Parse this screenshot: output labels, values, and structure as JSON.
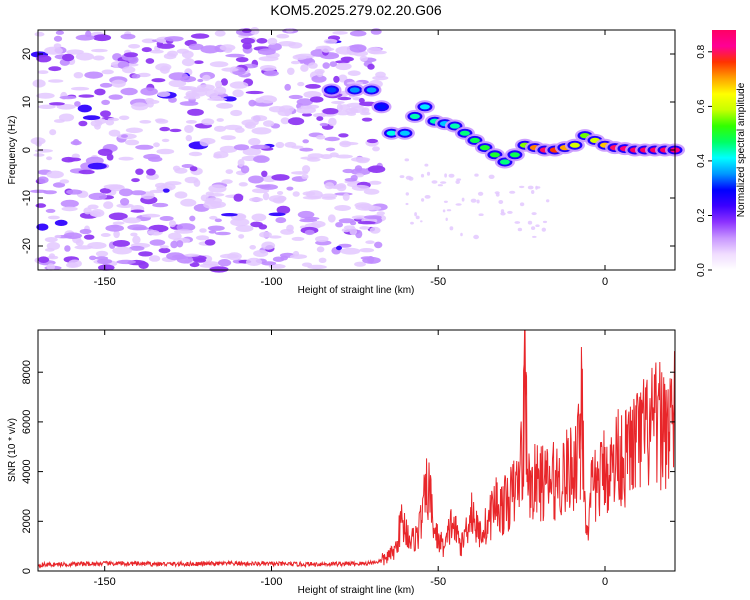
{
  "figure_title": "KOM5.2025.279.02.20.G06",
  "colors": {
    "blob": "#8a2be2",
    "snr_line": "#e8262a",
    "axis": "#000000",
    "colorbar_stops": [
      "#ffffff",
      "#f0dcff",
      "#c896ff",
      "#8c32ff",
      "#3c00ff",
      "#0000ff",
      "#0096ff",
      "#00ffff",
      "#00ff64",
      "#32ff00",
      "#c8ff00",
      "#ffff00",
      "#ffa000",
      "#ff3200",
      "#ff0096",
      "#ff0064"
    ]
  },
  "chart_data": [
    {
      "type": "heatmap",
      "title": "KOM5.2025.279.02.20.G06",
      "xlabel": "Height of straight line (km)",
      "ylabel": "Frequency (Hz)",
      "xlim": [
        -170,
        21
      ],
      "ylim": [
        -25,
        25
      ],
      "x_ticks": [
        -150,
        -100,
        -50,
        0
      ],
      "x_tick_labels": [
        "-150",
        "-100",
        "-50",
        "0"
      ],
      "y_ticks": [
        -20,
        -10,
        0,
        10,
        20
      ],
      "y_tick_labels": [
        "-20",
        "-10",
        "0",
        "10",
        "20"
      ],
      "noise_region_x": [
        -170,
        -67
      ],
      "ridge": {
        "x": [
          -82,
          -75,
          -70,
          -67,
          -64,
          -60,
          -57,
          -54,
          -51,
          -48,
          -45,
          -42,
          -39,
          -36,
          -33,
          -30,
          -27,
          -24,
          -21,
          -18,
          -15,
          -12,
          -9,
          -6,
          -3,
          0,
          3,
          6,
          9,
          12,
          15,
          18,
          21
        ],
        "y": [
          12.5,
          12.5,
          12.5,
          9,
          3.5,
          3.5,
          7,
          9,
          6,
          5.5,
          5,
          3.5,
          2,
          0.5,
          -1,
          -2.5,
          -1,
          1,
          0.5,
          0,
          0,
          0.5,
          1,
          3,
          2,
          1,
          0.5,
          0.3,
          0,
          0,
          0,
          0,
          0
        ],
        "amplitude": [
          0.32,
          0.35,
          0.36,
          0.3,
          0.42,
          0.38,
          0.44,
          0.4,
          0.44,
          0.38,
          0.44,
          0.46,
          0.48,
          0.5,
          0.5,
          0.46,
          0.48,
          0.56,
          0.72,
          0.8,
          0.76,
          0.7,
          0.6,
          0.55,
          0.6,
          0.68,
          0.8,
          0.86,
          0.9,
          0.92,
          0.92,
          0.9,
          0.85
        ]
      },
      "colorbar": {
        "label": "Normalized spectral amplitude",
        "range": [
          0.0,
          0.88
        ],
        "ticks": [
          0.0,
          0.2,
          0.4,
          0.6,
          0.8
        ],
        "tick_labels": [
          "0.0",
          "0.2",
          "0.4",
          "0.6",
          "0.8"
        ]
      }
    },
    {
      "type": "line",
      "xlabel": "Height of straight line (km)",
      "ylabel": "SNR (10 * v/v)",
      "xlim": [
        -170,
        21
      ],
      "ylim": [
        0,
        9700
      ],
      "x_ticks": [
        -150,
        -100,
        -50,
        0
      ],
      "x_tick_labels": [
        "-150",
        "-100",
        "-50",
        "0"
      ],
      "y_ticks": [
        0,
        2000,
        4000,
        6000,
        8000
      ],
      "y_tick_labels": [
        "0",
        "2000",
        "4000",
        "6000",
        "8000"
      ],
      "series": [
        {
          "name": "SNR",
          "x": [
            -170,
            -150,
            -130,
            -110,
            -90,
            -72,
            -67,
            -63,
            -61,
            -58,
            -56,
            -53,
            -51,
            -48,
            -46,
            -43,
            -40,
            -38,
            -35,
            -33,
            -31,
            -28,
            -26,
            -24.5,
            -24,
            -23,
            -20,
            -17,
            -14,
            -11,
            -9,
            -7.5,
            -7,
            -6,
            -5,
            -4,
            -2,
            0,
            2,
            4,
            6,
            8,
            10,
            12,
            15,
            18,
            21
          ],
          "values": [
            250,
            300,
            280,
            300,
            270,
            300,
            400,
            800,
            2000,
            1200,
            1500,
            3500,
            1500,
            900,
            2000,
            1000,
            2500,
            1500,
            1900,
            2800,
            2500,
            3000,
            3500,
            5200,
            9700,
            3400,
            3600,
            3500,
            3700,
            4000,
            4300,
            5800,
            8200,
            2800,
            1100,
            3300,
            3500,
            4200,
            4000,
            4800,
            4500,
            5000,
            5200,
            5500,
            5800,
            5900,
            6200
          ]
        }
      ]
    }
  ]
}
